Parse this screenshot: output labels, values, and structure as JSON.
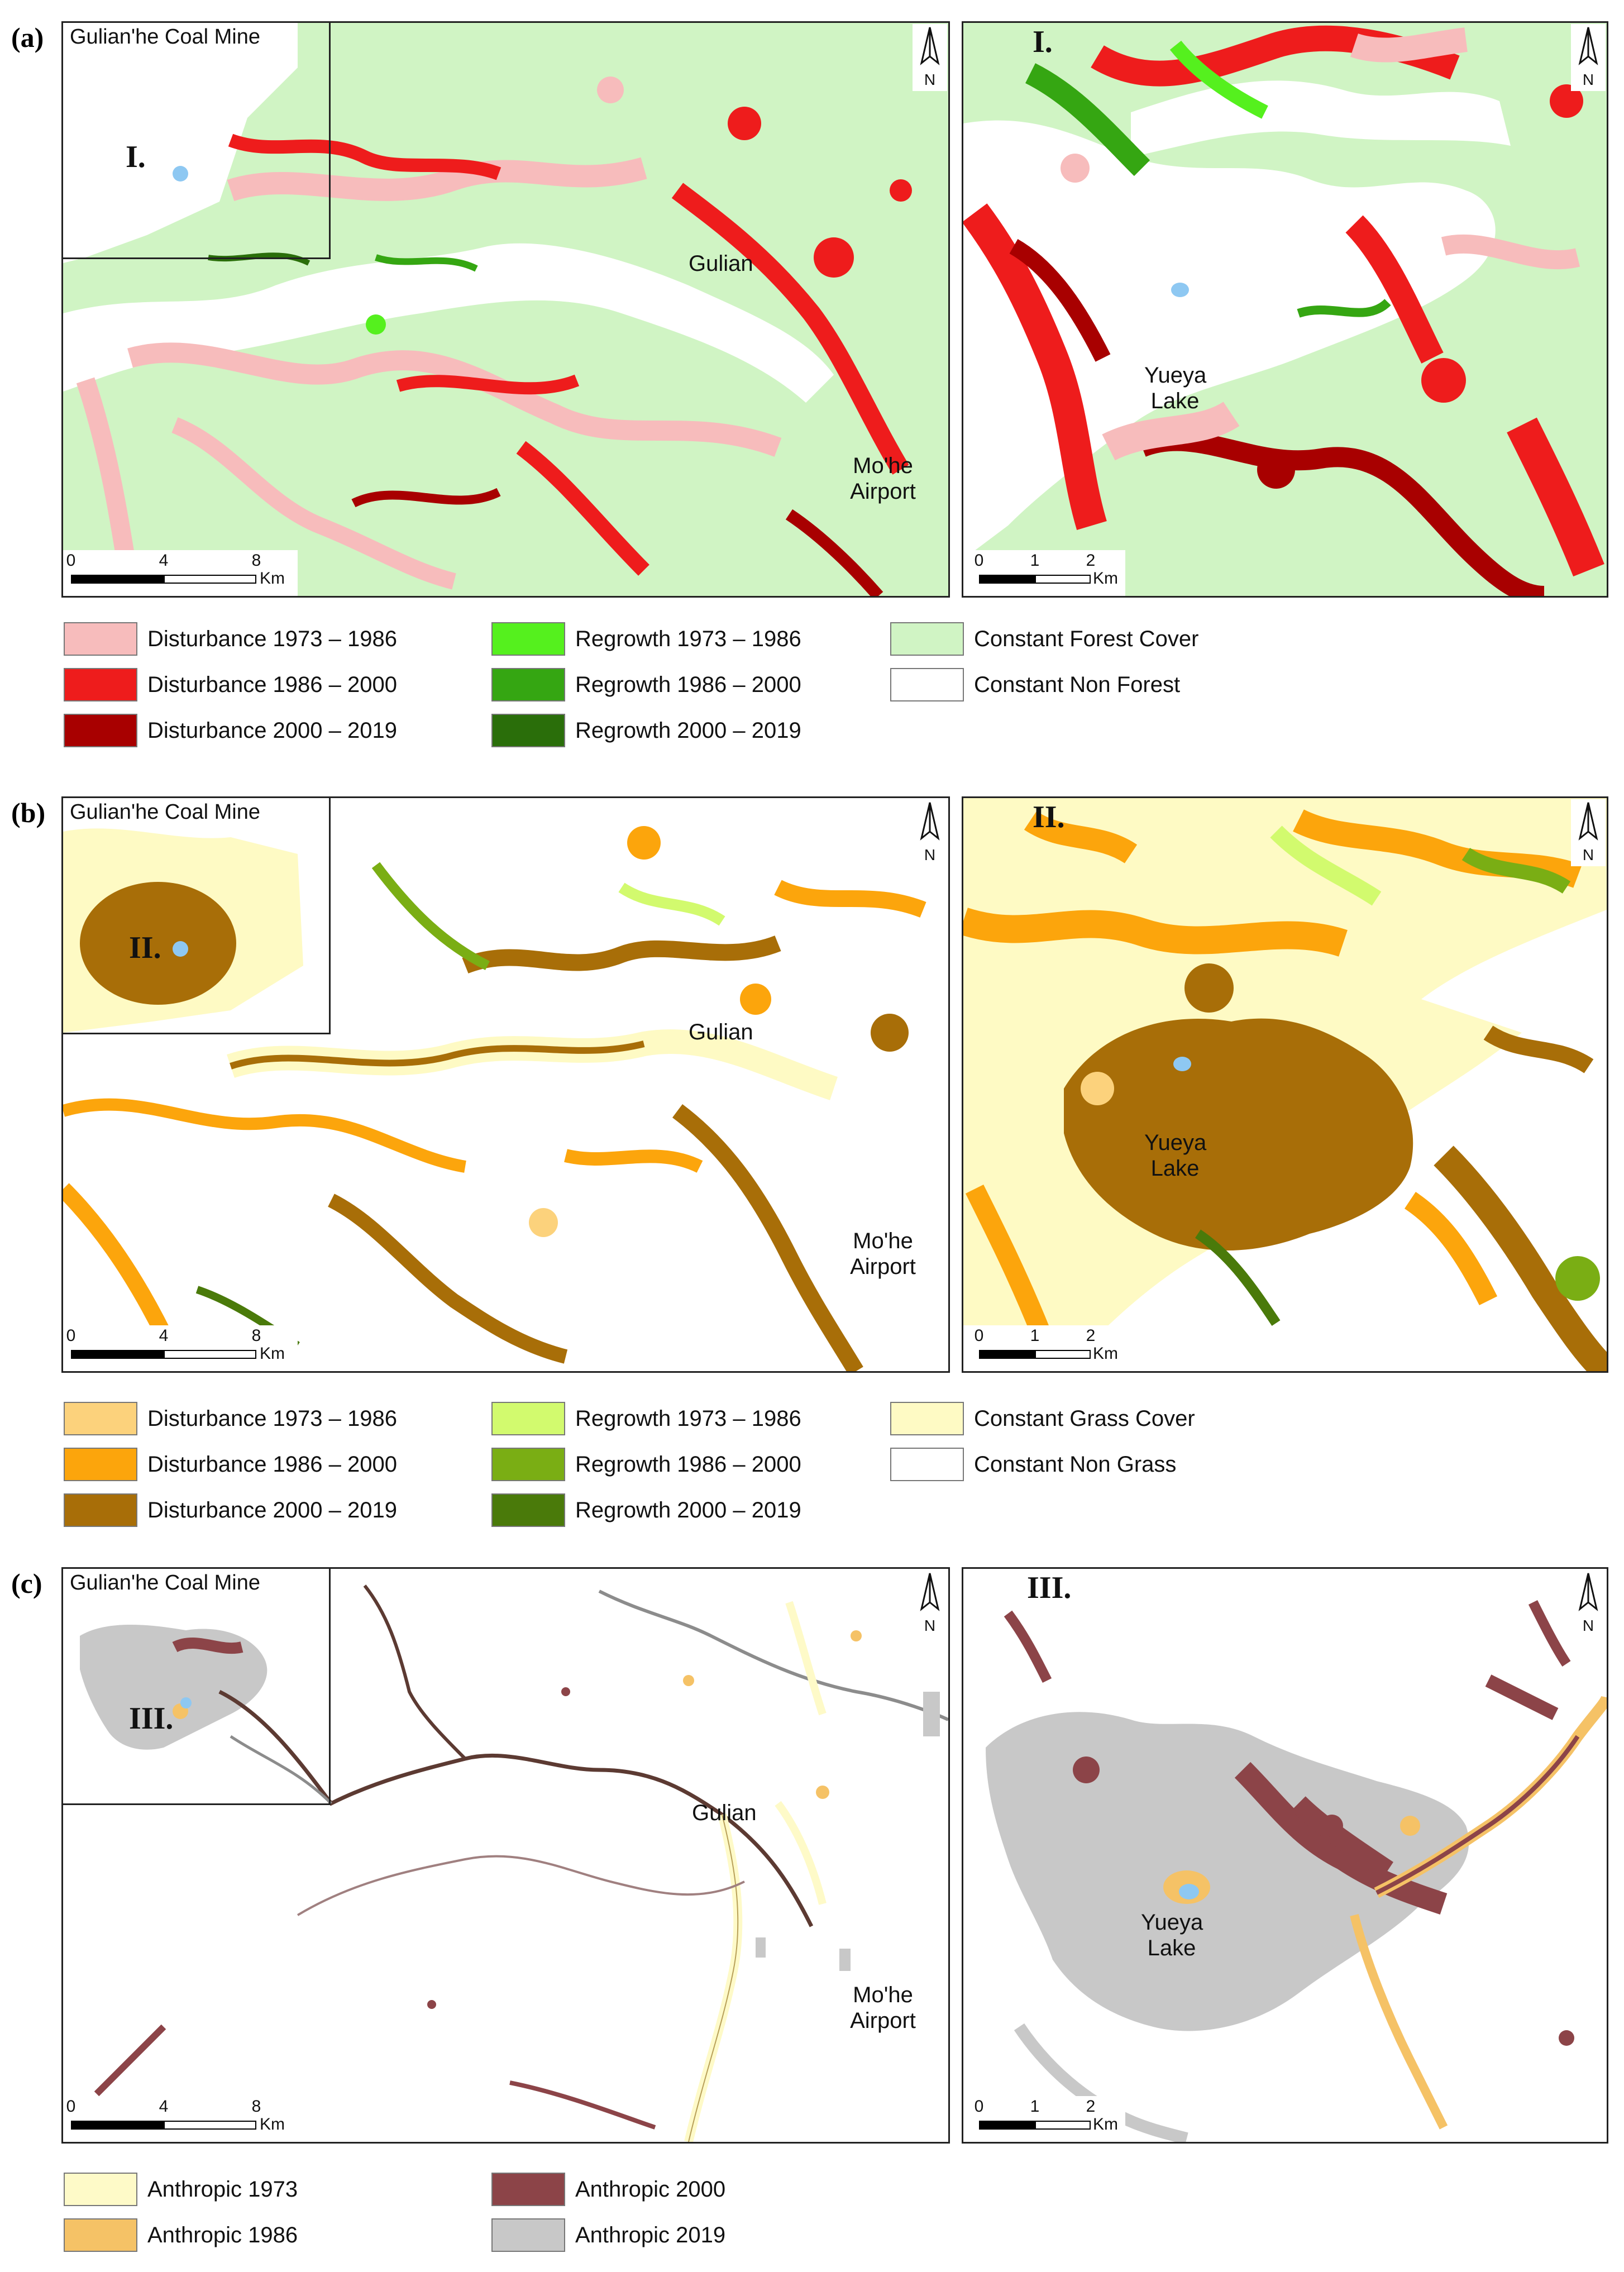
{
  "panels": [
    {
      "label": "(a)",
      "mine": "Gulian'he Coal Mine",
      "inset_roman": "I.",
      "town": "Gulian",
      "airport": "Mo'he Airport",
      "lake": "Yueya Lake",
      "north": "N",
      "scale_main": {
        "ticks": [
          "0",
          "4",
          "8"
        ],
        "unit": "Km"
      },
      "scale_inset": {
        "ticks": [
          "0",
          "1",
          "2"
        ],
        "unit": "Km"
      },
      "legend": [
        {
          "label": "Disturbance 1973 – 1986",
          "color": "#f7bcbc"
        },
        {
          "label": "Disturbance 1986 – 2000",
          "color": "#ee1c1c"
        },
        {
          "label": "Disturbance 2000 – 2019",
          "color": "#a80000"
        },
        {
          "label": "Regrowth 1973 – 1986",
          "color": "#55f01e"
        },
        {
          "label": "Regrowth 1986 – 2000",
          "color": "#35a612"
        },
        {
          "label": "Regrowth 2000 – 2019",
          "color": "#2a6e0a"
        },
        {
          "label": "Constant Forest Cover",
          "color": "#d0f4c4"
        },
        {
          "label": "Constant Non Forest",
          "color": "#ffffff"
        }
      ]
    },
    {
      "label": "(b)",
      "mine": "Gulian'he Coal Mine",
      "inset_roman": "II.",
      "town": "Gulian",
      "airport": "Mo'he Airport",
      "lake": "Yueya Lake",
      "north": "N",
      "scale_main": {
        "ticks": [
          "0",
          "4",
          "8"
        ],
        "unit": "Km"
      },
      "scale_inset": {
        "ticks": [
          "0",
          "1",
          "2"
        ],
        "unit": "Km"
      },
      "legend": [
        {
          "label": "Disturbance 1973 – 1986",
          "color": "#fcd27c"
        },
        {
          "label": "Disturbance 1986 – 2000",
          "color": "#fca50c"
        },
        {
          "label": "Disturbance 2000 – 2019",
          "color": "#a86e08"
        },
        {
          "label": "Regrowth 1973 – 1986",
          "color": "#d2fa6e"
        },
        {
          "label": "Regrowth 1986 – 2000",
          "color": "#7aae14"
        },
        {
          "label": "Regrowth 2000 – 2019",
          "color": "#4a7a0a"
        },
        {
          "label": "Constant Grass Cover",
          "color": "#fefac4"
        },
        {
          "label": "Constant Non Grass",
          "color": "#ffffff"
        }
      ]
    },
    {
      "label": "(c)",
      "mine": "Gulian'he Coal Mine",
      "inset_roman": "III.",
      "town": "Gulian",
      "airport": "Mo'he Airport",
      "lake": "Yueya Lake",
      "north": "N",
      "scale_main": {
        "ticks": [
          "0",
          "4",
          "8"
        ],
        "unit": "Km"
      },
      "scale_inset": {
        "ticks": [
          "0",
          "1",
          "2"
        ],
        "unit": "Km"
      },
      "legend": [
        {
          "label": "Anthropic 1973",
          "color": "#fefac8"
        },
        {
          "label": "Anthropic 1986",
          "color": "#f5c266"
        },
        {
          "label": "Anthropic 2000",
          "color": "#8c4448"
        },
        {
          "label": "Anthropic 2019",
          "color": "#c8c8c8"
        }
      ]
    }
  ],
  "colors": {
    "lake": "#8ec8f2",
    "frame": "#222222"
  }
}
